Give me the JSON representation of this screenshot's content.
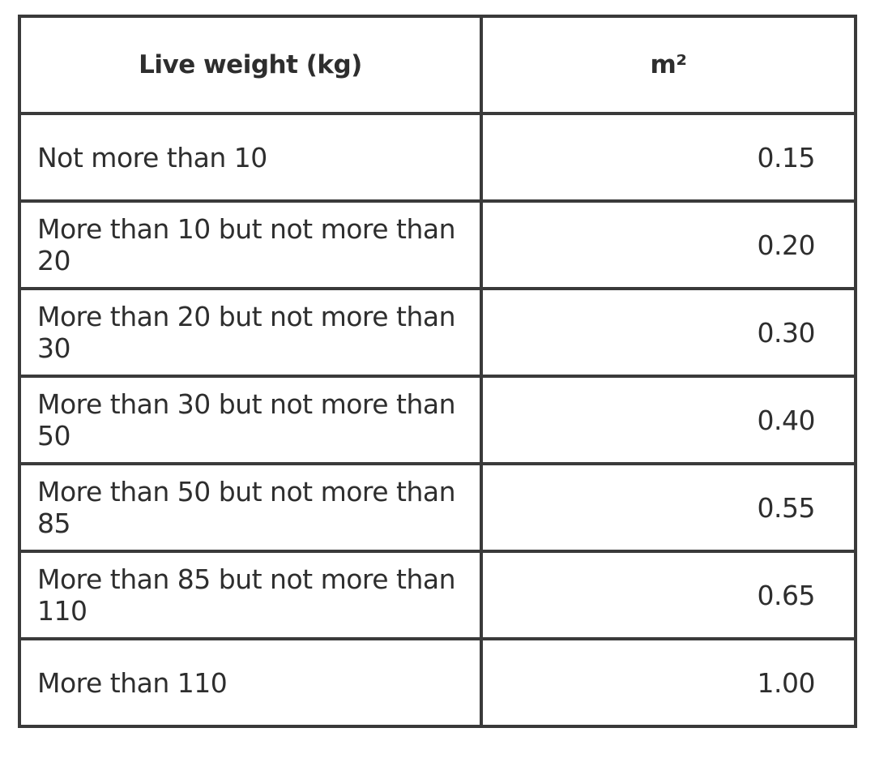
{
  "table": {
    "header": [
      "Live weight (kg)",
      "m²"
    ],
    "rows": [
      [
        "Not more than 10",
        "0.15"
      ],
      [
        "More than 10 but not more than 20",
        "0.20"
      ],
      [
        "More than 20 but not more than 30",
        "0.30"
      ],
      [
        "More than 30 but not more than 50",
        "0.40"
      ],
      [
        "More than 50 but not more than 85",
        "0.55"
      ],
      [
        "More than 85 but not more than 110",
        "0.65"
      ],
      [
        "More than 110",
        "1.00"
      ]
    ]
  }
}
